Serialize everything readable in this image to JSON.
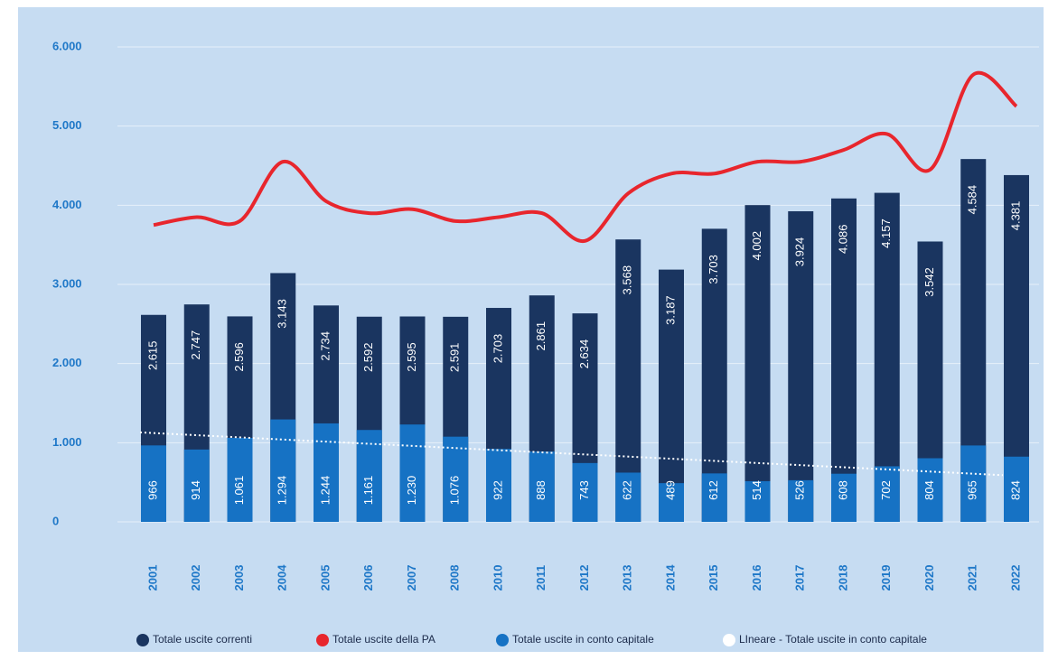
{
  "chart_data": {
    "type": "bar",
    "categories": [
      "2001",
      "2002",
      "2003",
      "2004",
      "2005",
      "2006",
      "2007",
      "2008",
      "2010",
      "2011",
      "2012",
      "2013",
      "2014",
      "2015",
      "2016",
      "2017",
      "2018",
      "2019",
      "2020",
      "2021",
      "2022"
    ],
    "series": [
      {
        "name": "Totale uscite correnti",
        "color": "#1a3560",
        "kind": "bar",
        "values": [
          2615,
          2747,
          2596,
          3143,
          2734,
          2592,
          2595,
          2591,
          2703,
          2861,
          2634,
          3568,
          3187,
          3703,
          4002,
          3924,
          4086,
          4157,
          3542,
          4584,
          4381
        ],
        "value_labels": [
          "2.615",
          "2.747",
          "2.596",
          "3.143",
          "2.734",
          "2.592",
          "2.595",
          "2.591",
          "2.703",
          "2.861",
          "2.634",
          "3.568",
          "3.187",
          "3.703",
          "4.002",
          "3.924",
          "4.086",
          "4.157",
          "3.542",
          "4.584",
          "4.381"
        ]
      },
      {
        "name": "Totale uscite della PA",
        "color": "#e8262d",
        "kind": "line",
        "values": [
          3750,
          3850,
          3800,
          4550,
          4050,
          3900,
          3950,
          3800,
          3850,
          3900,
          3550,
          4150,
          4400,
          4400,
          4550,
          4550,
          4700,
          4900,
          4450,
          5650,
          5250
        ]
      },
      {
        "name": "Totale uscite in conto capitale",
        "color": "#1672c4",
        "kind": "bar",
        "values": [
          966,
          914,
          1061,
          1294,
          1244,
          1161,
          1230,
          1076,
          922,
          888,
          743,
          622,
          489,
          612,
          514,
          526,
          608,
          702,
          804,
          965,
          824
        ],
        "value_labels": [
          "966",
          "914",
          "1.061",
          "1.294",
          "1.244",
          "1.161",
          "1.230",
          "1.076",
          "922",
          "888",
          "743",
          "622",
          "489",
          "612",
          "514",
          "526",
          "608",
          "702",
          "804",
          "965",
          "824"
        ]
      },
      {
        "name": "LIneare - Totale uscite in conto capitale",
        "color": "#ffffff",
        "kind": "trend",
        "values": [
          1130,
          1103,
          1076,
          1049,
          1022,
          995,
          968,
          941,
          914,
          887,
          860,
          833,
          806,
          779,
          752,
          725,
          698,
          671,
          644,
          617,
          590
        ]
      }
    ],
    "ylim": [
      0,
      6000
    ],
    "yticks": [
      {
        "value": 0,
        "label": "0"
      },
      {
        "value": 1000,
        "label": "1.000"
      },
      {
        "value": 2000,
        "label": "2.000"
      },
      {
        "value": 3000,
        "label": "3.000"
      },
      {
        "value": 4000,
        "label": "4.000"
      },
      {
        "value": 5000,
        "label": "5.000"
      },
      {
        "value": 6000,
        "label": "6.000"
      }
    ],
    "grid": true
  }
}
